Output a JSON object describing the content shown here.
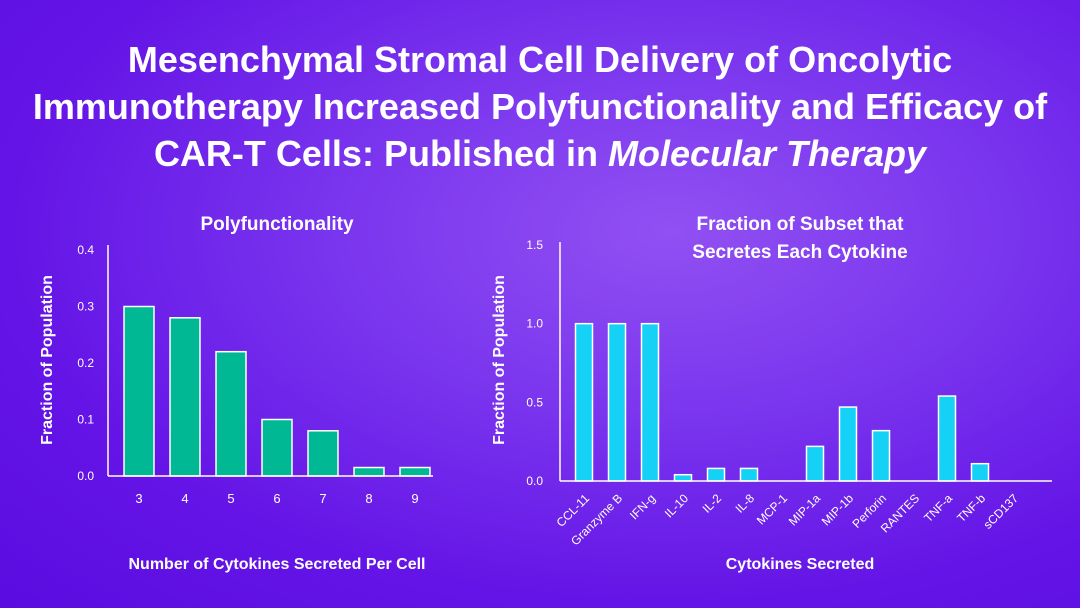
{
  "title": {
    "main": "Mesenchymal Stromal Cell Delivery of Oncolytic Immunotherapy Increased Polyfunctionality and Efficacy of CAR-T Cells: Published in ",
    "journal": "Molecular Therapy"
  },
  "colors": {
    "left_bars": "#00b894",
    "right_bars": "#15d1f5",
    "axis": "#ffffff"
  },
  "chart_data": [
    {
      "type": "bar",
      "title": "Polyfunctionality",
      "xlabel": "Number of Cytokines Secreted Per Cell",
      "ylabel": "Fraction of Population",
      "categories": [
        "3",
        "4",
        "5",
        "6",
        "7",
        "8",
        "9"
      ],
      "values": [
        0.3,
        0.28,
        0.22,
        0.1,
        0.08,
        0.015,
        0.015
      ],
      "ylim": [
        0,
        0.4
      ],
      "yticks": [
        "0.0",
        "0.1",
        "0.2",
        "0.3",
        "0.4"
      ],
      "grid": false,
      "legend": "none"
    },
    {
      "type": "bar",
      "title_lines": [
        "Fraction of Subset that",
        "Secretes Each Cytokine"
      ],
      "xlabel": "Cytokines Secreted",
      "ylabel": "Fraction of Population",
      "categories": [
        "CCL-11",
        "Granzyme B",
        "IFN-g",
        "IL-10",
        "IL-2",
        "IL-8",
        "MCP-1",
        "MIP-1a",
        "MIP-1b",
        "Perforin",
        "RANTES",
        "TNF-a",
        "TNF-b",
        "sCD137"
      ],
      "values": [
        1.0,
        1.0,
        1.0,
        0.04,
        0.08,
        0.08,
        0.0,
        0.22,
        0.47,
        0.32,
        0.0,
        0.54,
        0.11,
        0.0
      ],
      "ylim": [
        0,
        1.5
      ],
      "yticks": [
        "0.0",
        "0.5",
        "1.0",
        "1.5"
      ],
      "grid": false,
      "legend": "none"
    }
  ]
}
